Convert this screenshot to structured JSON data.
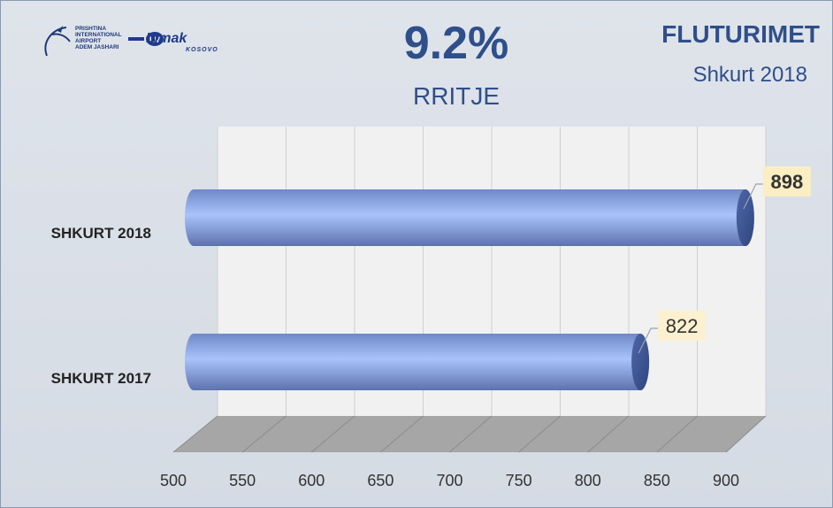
{
  "header": {
    "airport_text": "PRISHTINA\nINTERNATIONAL\nAIRPORT\nADEM JASHARI",
    "limak_text": "Limak",
    "limak_sub": "KOSOVO",
    "headline": "9.2%",
    "sub_headline": "RRITJE",
    "title": "FLUTURIMET",
    "subtitle": "Shkurt 2018"
  },
  "chart_data": {
    "type": "bar",
    "orientation": "horizontal",
    "categories": [
      "SHKURT 2018",
      "SHKURT 2017"
    ],
    "values": [
      898,
      822
    ],
    "data_labels": [
      "898",
      "822"
    ],
    "xlim": [
      500,
      900
    ],
    "xticks": [
      500,
      550,
      600,
      650,
      700,
      750,
      800,
      850,
      900
    ],
    "bar_color": "#8eaaf0",
    "highlight_label": "898",
    "grid": true
  }
}
